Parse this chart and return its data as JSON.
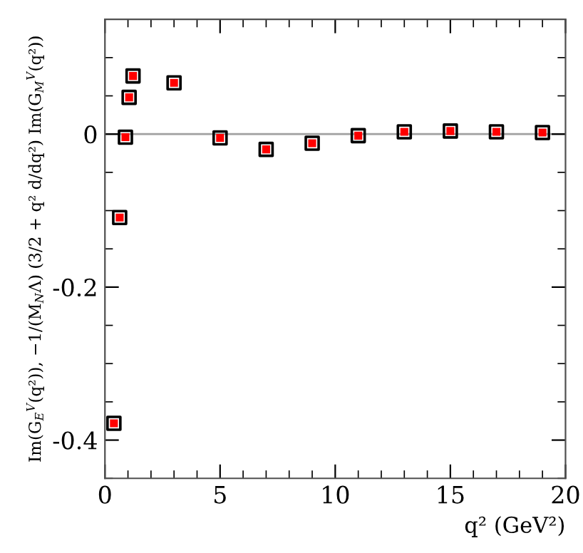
{
  "chart_data": {
    "type": "scatter",
    "xlabel": "q² (GeV²)",
    "ylabel": "Im(G$_{E}$$^{V}$(q²)), −1/(M$_{N}$Λ) (3/2 + q² d/dq²) Im(G$_{M}$$^{V}$(q²))",
    "x": [
      0.39,
      0.64,
      0.89,
      1.05,
      1.22,
      3.0,
      5.0,
      7.0,
      9.0,
      11.0,
      13.0,
      15.0,
      17.0,
      19.0
    ],
    "series": [
      {
        "color": "#000000",
        "marker": "square",
        "values": [
          -0.378,
          -0.109,
          -0.004,
          0.048,
          0.076,
          0.067,
          -0.005,
          -0.02,
          -0.012,
          -0.002,
          0.003,
          0.004,
          0.003,
          0.002
        ]
      },
      {
        "color": "#ff0000",
        "marker": "square",
        "values": [
          -0.378,
          -0.109,
          -0.004,
          0.048,
          0.076,
          0.067,
          -0.005,
          -0.02,
          -0.012,
          -0.002,
          0.003,
          0.004,
          0.003,
          0.002
        ]
      }
    ],
    "xlim": [
      0,
      20
    ],
    "ylim": [
      -0.45,
      0.15
    ],
    "xticks": [
      0,
      5,
      10,
      15,
      20
    ],
    "yticks": [
      {
        "value": -0.4,
        "label": "-0.4"
      },
      {
        "value": -0.2,
        "label": "-0.2"
      },
      0
    ],
    "ref_lines": [
      {
        "axis": "y",
        "value": 0,
        "color": "#a0a0a0"
      }
    ],
    "grid": false,
    "legend": false
  }
}
